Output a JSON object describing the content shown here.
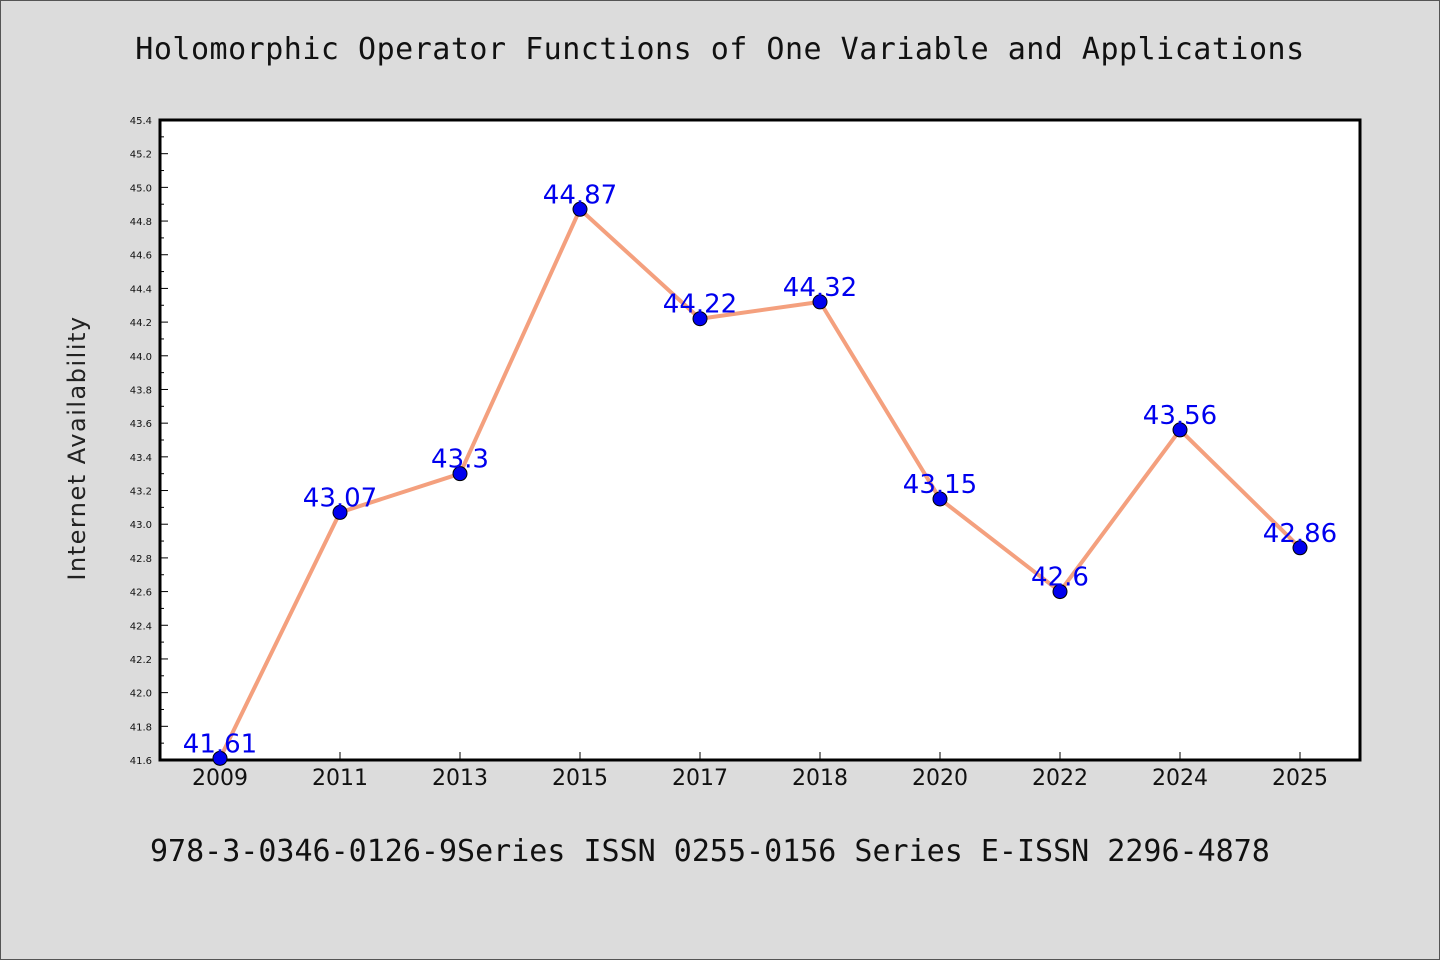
{
  "title": "Holomorphic Operator Functions of One Variable and Applications",
  "footer": "978-3-0346-0126-9Series ISSN 0255-0156 Series E-ISSN 2296-4878",
  "colors": {
    "background": "#dcdcdc",
    "plot_background": "#ffffff",
    "line": "#f4a07e",
    "marker": "#0000ee",
    "data_label": "#0000ee"
  },
  "chart_data": {
    "type": "line",
    "title": "Holomorphic Operator Functions of One Variable and Applications",
    "xlabel": "",
    "ylabel": "Internet Availability",
    "categories": [
      "2009",
      "2011",
      "2013",
      "2015",
      "2017",
      "2018",
      "2020",
      "2022",
      "2024",
      "2025"
    ],
    "series": [
      {
        "values": [
          41.61,
          43.07,
          43.3,
          44.87,
          44.22,
          44.32,
          43.15,
          42.6,
          43.56,
          42.86
        ],
        "labels": [
          "41.61",
          "43.07",
          "43.3",
          "44.87",
          "44.22",
          "44.32",
          "43.15",
          "42.6",
          "43.56",
          "42.86"
        ]
      }
    ],
    "ylim": [
      41.6,
      45.4
    ],
    "yticks": [
      "41.6",
      "41.8",
      "42.0",
      "42.2",
      "42.4",
      "42.6",
      "42.8",
      "43.0",
      "43.2",
      "43.4",
      "43.6",
      "43.8",
      "44.0",
      "44.2",
      "44.4",
      "44.6",
      "44.8",
      "45.0",
      "45.2",
      "45.4"
    ],
    "grid": false,
    "legend": "none"
  }
}
